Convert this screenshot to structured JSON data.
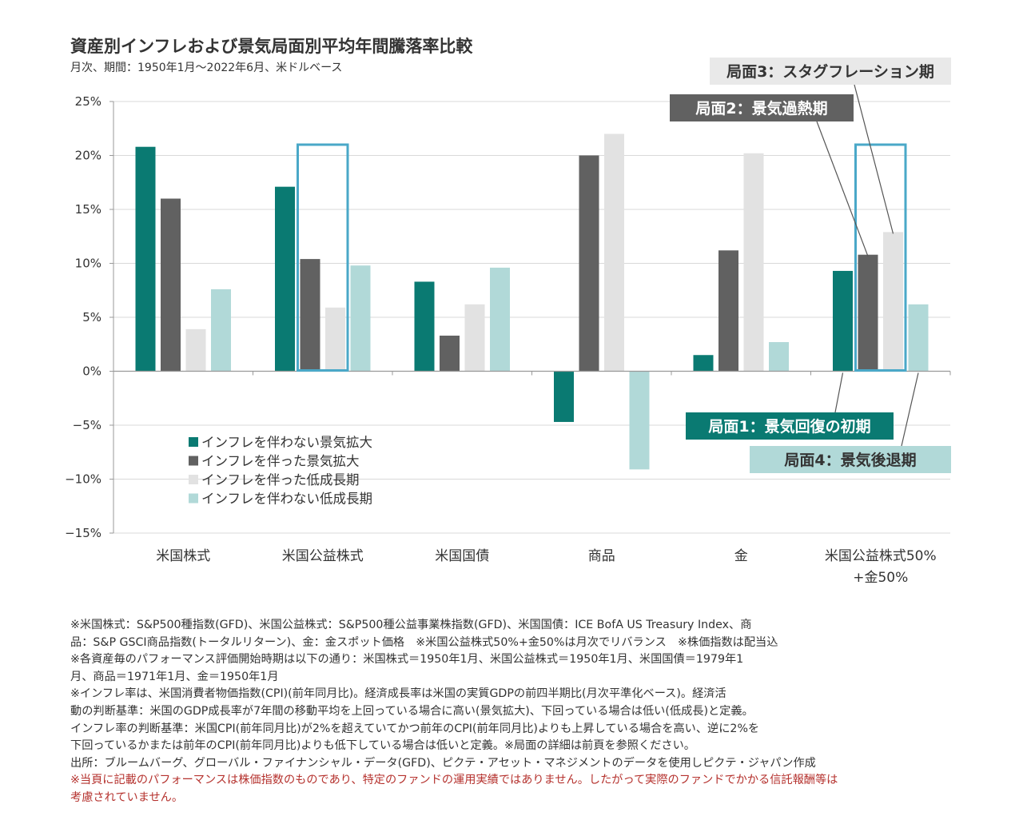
{
  "chart_data": {
    "type": "bar",
    "title": "資産別インフレおよび景気局面別平均年間騰落率比較",
    "subtitle": "月次、期間：1950年1月～2022年6月、米ドルベース",
    "categories": [
      "米国株式",
      "米国公益株式",
      "米国国債",
      "商品",
      "金",
      "米国公益株式50%\n+金50%"
    ],
    "category_lines": [
      [
        "米国株式"
      ],
      [
        "米国公益株式"
      ],
      [
        "米国国債"
      ],
      [
        "商品"
      ],
      [
        "金"
      ],
      [
        "米国公益株式50%",
        "+金50%"
      ]
    ],
    "series": [
      {
        "name": "インフレを伴わない景気拡大",
        "color": "#0a7a72",
        "values": [
          20.8,
          17.1,
          8.3,
          -4.7,
          1.5,
          9.3
        ]
      },
      {
        "name": "インフレを伴った景気拡大",
        "color": "#616161",
        "values": [
          16.0,
          10.4,
          3.3,
          20.0,
          11.2,
          10.8
        ]
      },
      {
        "name": "インフレを伴った低成長期",
        "color": "#e2e2e2",
        "values": [
          3.9,
          5.9,
          6.2,
          22.0,
          20.2,
          12.9
        ]
      },
      {
        "name": "インフレを伴わない低成長期",
        "color": "#b1d9d8",
        "values": [
          7.6,
          9.8,
          9.6,
          -9.1,
          2.7,
          6.2
        ]
      }
    ],
    "ylim": [
      -15,
      25
    ],
    "yticks": [
      25,
      20,
      15,
      10,
      5,
      0,
      -5,
      -10,
      -15
    ],
    "ytick_labels": [
      "25%",
      "20%",
      "15%",
      "10%",
      "5%",
      "0%",
      "−5%",
      "−10%",
      "−15%"
    ],
    "grid": true,
    "legend_position": "lower-left",
    "highlight_categories": [
      1,
      5
    ],
    "highlight_top_value": 21.0,
    "highlight_color": "#4aa8c8",
    "annotations": [
      {
        "text": "局面3：スタグフレーション期",
        "bg": "#e9e9e9",
        "fg": "#333333",
        "target_category": 5,
        "target_series": 2
      },
      {
        "text": "局面2：景気過熱期",
        "bg": "#616161",
        "fg": "#ffffff",
        "target_category": 5,
        "target_series": 1
      },
      {
        "text": "局面1：景気回復の初期",
        "bg": "#0a7a72",
        "fg": "#ffffff",
        "target_category": 5,
        "target_series": 0
      },
      {
        "text": "局面4：景気後退期",
        "bg": "#b1d9d8",
        "fg": "#333333",
        "target_category": 5,
        "target_series": 3
      }
    ]
  },
  "notes": [
    {
      "text": "※米国株式：S&P500種指数(GFD)、米国公益株式：S&P500種公益事業株指数(GFD)、米国国債：ICE BofA US Treasury Index、商",
      "warn": false
    },
    {
      "text": "品：S&P GSCI商品指数(トータルリターン)、金：金スポット価格　※米国公益株式50%+金50%は月次でリバランス　※株価指数は配当込",
      "warn": false
    },
    {
      "text": "※各資産毎のパフォーマンス評価開始時期は以下の通り：米国株式＝1950年1月、米国公益株式＝1950年1月、米国国債＝1979年1",
      "warn": false
    },
    {
      "text": "月、商品＝1971年1月、金＝1950年1月",
      "warn": false
    },
    {
      "text": "※インフレ率は、米国消費者物価指数(CPI)(前年同月比)。経済成長率は米国の実質GDPの前四半期比(月次平準化ベース)。経済活",
      "warn": false
    },
    {
      "text": "動の判断基準：米国のGDP成長率が7年間の移動平均を上回っている場合に高い(景気拡大)、下回っている場合は低い(低成長)と定義。",
      "warn": false
    },
    {
      "text": "インフレ率の判断基準：米国CPI(前年同月比)が2%を超えていてかつ前年のCPI(前年同月比)よりも上昇している場合を高い、逆に2%を",
      "warn": false
    },
    {
      "text": "下回っているかまたは前年のCPI(前年同月比)よりも低下している場合は低いと定義。※局面の詳細は前頁を参照ください。",
      "warn": false
    },
    {
      "text": "出所：ブルームバーグ、グローバル・ファイナンシャル・データ(GFD)、ピクテ・アセット・マネジメントのデータを使用しピクテ・ジャパン作成",
      "warn": false
    },
    {
      "text": "※当頁に記載のパフォーマンスは株価指数のものであり、特定のファンドの運用実績ではありません。したがって実際のファンドでかかる信託報酬等は",
      "warn": true
    },
    {
      "text": "考慮されていません。",
      "warn": true
    }
  ]
}
